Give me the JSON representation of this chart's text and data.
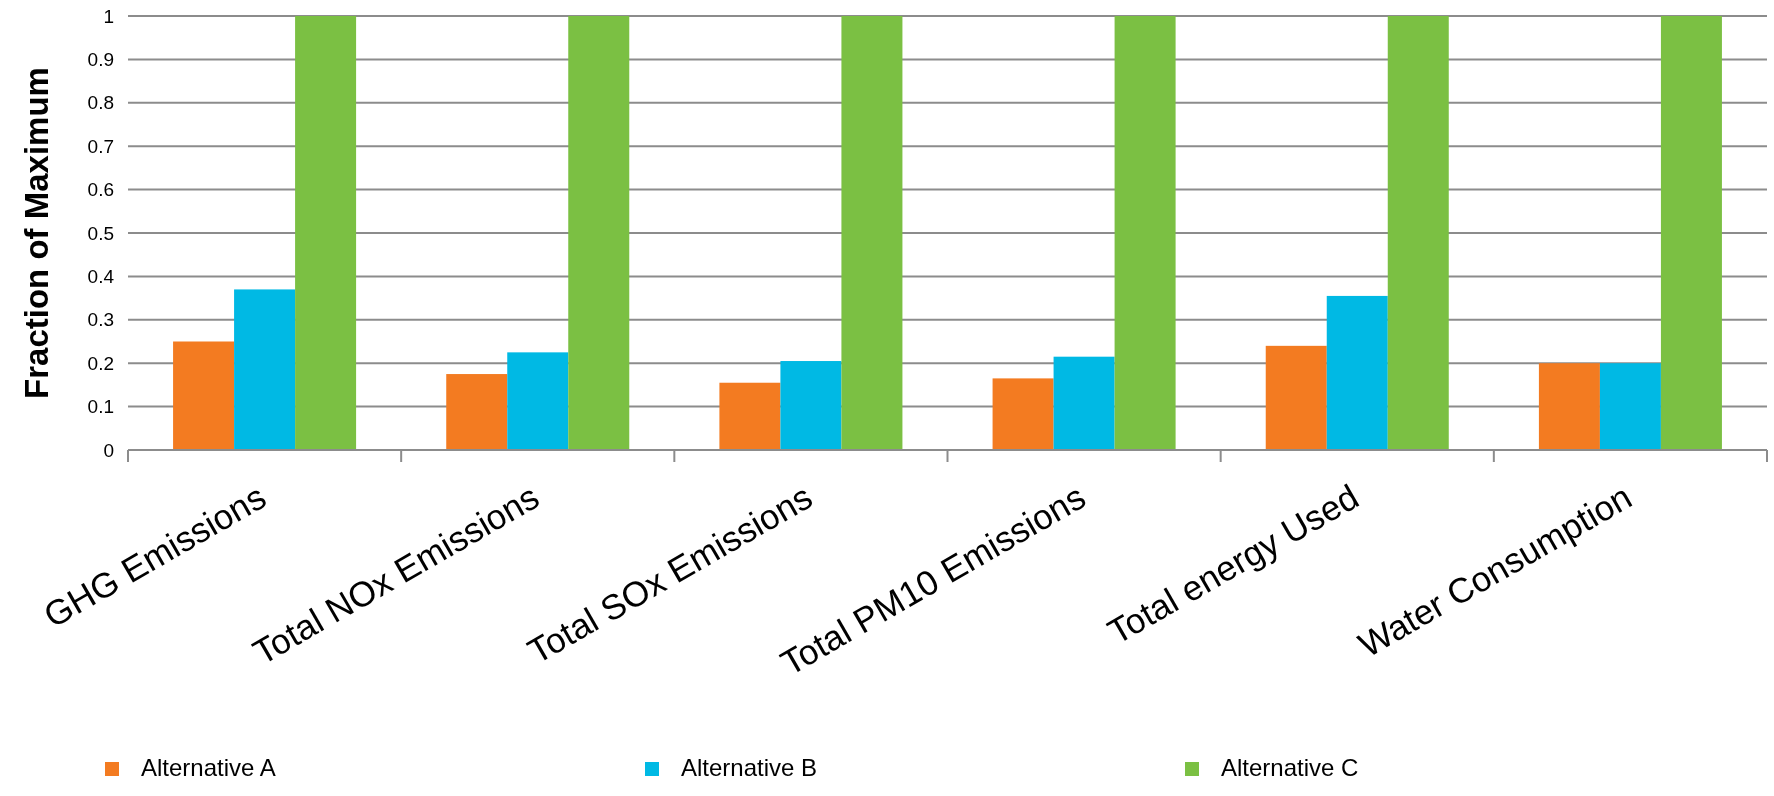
{
  "chart_data": {
    "type": "bar",
    "ylabel": "Fraction of Maximum",
    "categories": [
      "GHG Emissions",
      "Total NOx Emissions",
      "Total SOx Emissions",
      "Total PM10 Emissions",
      "Total energy Used",
      "Water Consumption"
    ],
    "series": [
      {
        "name": "Alternative A",
        "color": "#f37b21",
        "values": [
          0.25,
          0.175,
          0.155,
          0.165,
          0.24,
          0.2
        ]
      },
      {
        "name": "Alternative B",
        "color": "#00b9e4",
        "values": [
          0.37,
          0.225,
          0.205,
          0.215,
          0.355,
          0.2
        ]
      },
      {
        "name": "Alternative C",
        "color": "#7bc043",
        "values": [
          1,
          1,
          1,
          1,
          1,
          1
        ]
      }
    ],
    "ylim": [
      0,
      1
    ],
    "yticks": [
      0,
      0.1,
      0.2,
      0.3,
      0.4,
      0.5,
      0.6,
      0.7,
      0.8,
      0.9,
      1
    ],
    "grid": "y",
    "legend": "bottom"
  }
}
